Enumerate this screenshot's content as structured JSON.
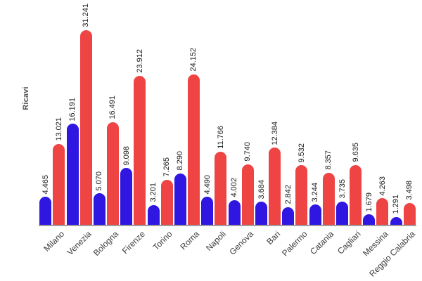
{
  "page": {
    "background_color": "#ffffff"
  },
  "chart_data": {
    "type": "bar",
    "title": "",
    "xlabel": "",
    "ylabel": "Ricavi",
    "legend_position": "none",
    "grid": false,
    "bar_style": "rounded-top",
    "value_labels_rotation_deg": -90,
    "category_labels_rotation_deg": -45,
    "axis_line_color": "#9e9e9e",
    "value_label_color": "#1a1a1a",
    "category_label_color": "#3c3c3c",
    "ylabel_color": "#555555",
    "ymax": 31241,
    "categories": [
      "Milano",
      "Venezia",
      "Bologna",
      "Firenze",
      "Torino",
      "Roma",
      "Napoli",
      "Genova",
      "Bari",
      "Palermo",
      "Catania",
      "Cagliari",
      "Messina",
      "Reggio Calabria"
    ],
    "series": [
      {
        "name": "series-blue",
        "color": "#2f16e1",
        "values": [
          4465,
          16191,
          5070,
          9098,
          3201,
          8290,
          4490,
          4002,
          3684,
          2842,
          3244,
          3735,
          1679,
          1291
        ],
        "labels": [
          "4.465",
          "16.191",
          "5.070",
          "9.098",
          "3.201",
          "8.290",
          "4.490",
          "4.002",
          "3.684",
          "2.842",
          "3.244",
          "3.735",
          "1.679",
          "1.291"
        ]
      },
      {
        "name": "series-red",
        "color": "#ee4544",
        "values": [
          13021,
          31241,
          16491,
          23912,
          7265,
          24152,
          11766,
          9740,
          12384,
          9532,
          8357,
          9635,
          4263,
          3498
        ],
        "labels": [
          "13.021",
          "31.241",
          "16.491",
          "23.912",
          "7.265",
          "24.152",
          "11.766",
          "9.740",
          "12.384",
          "9.532",
          "8.357",
          "9.635",
          "4.263",
          "3.498"
        ]
      }
    ]
  }
}
